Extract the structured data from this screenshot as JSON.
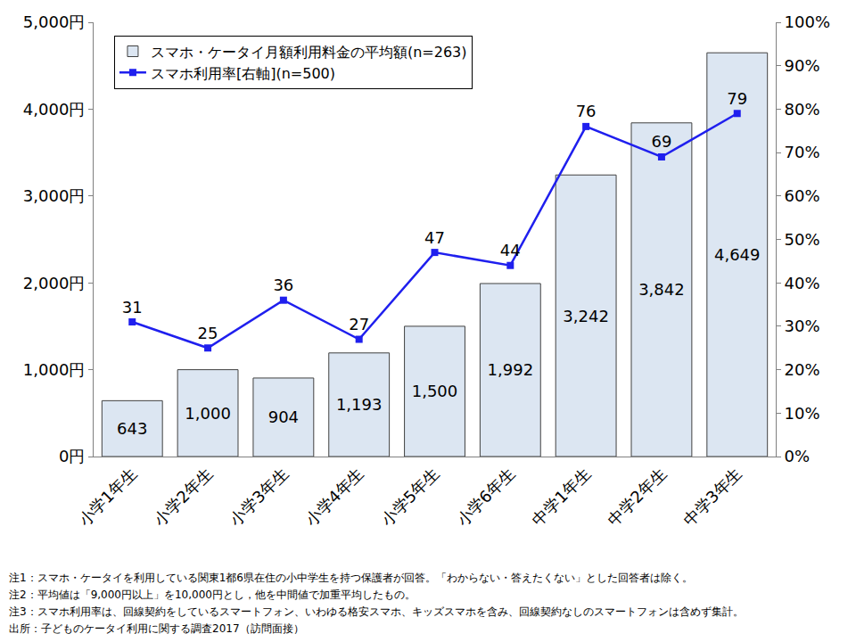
{
  "chart_data": {
    "type": "bar",
    "categories": [
      "小学1年生",
      "小学2年生",
      "小学3年生",
      "小学4年生",
      "小学5年生",
      "小学6年生",
      "中学1年生",
      "中学2年生",
      "中学3年生"
    ],
    "series": [
      {
        "name": "スマホ・ケータイ月額利用料金の平均額(n=263)",
        "type": "bar",
        "color": "#dce6f2",
        "values": [
          643,
          1000,
          904,
          1193,
          1500,
          1992,
          3242,
          3842,
          4649
        ],
        "value_labels": [
          "643",
          "1,000",
          "904",
          "1,193",
          "1,500",
          "1,992",
          "3,242",
          "3,842",
          "4,649"
        ]
      },
      {
        "name": "スマホ利用率[右軸](n=500)",
        "type": "line",
        "axis": "y2",
        "color": "#1f1fee",
        "marker": "square",
        "values": [
          31,
          25,
          36,
          27,
          47,
          44,
          76,
          69,
          79
        ]
      }
    ],
    "ylim": [
      0,
      5000
    ],
    "yticks": [
      {
        "value": 0,
        "label": "0円"
      },
      {
        "value": 1000,
        "label": "1,000円"
      },
      {
        "value": 2000,
        "label": "2,000円"
      },
      {
        "value": 3000,
        "label": "3,000円"
      },
      {
        "value": 4000,
        "label": "4,000円"
      },
      {
        "value": 5000,
        "label": "5,000円"
      }
    ],
    "y2lim": [
      0,
      100
    ],
    "y2ticks": [
      {
        "value": 0,
        "label": "0%"
      },
      {
        "value": 10,
        "label": "10%"
      },
      {
        "value": 20,
        "label": "20%"
      },
      {
        "value": 30,
        "label": "30%"
      },
      {
        "value": 40,
        "label": "40%"
      },
      {
        "value": 50,
        "label": "50%"
      },
      {
        "value": 60,
        "label": "60%"
      },
      {
        "value": 70,
        "label": "70%"
      },
      {
        "value": 80,
        "label": "80%"
      },
      {
        "value": 90,
        "label": "90%"
      },
      {
        "value": 100,
        "label": "100%"
      }
    ],
    "grid": false,
    "legend": "upper left",
    "data_labels": true,
    "annotations": [
      "注1：スマホ・ケータイを利用している関東1都6県在住の小中学生を持つ保護者が回答。「わからない・答えたくない」とした回答者は除く。",
      "注2：平均値は「9,000円以上」を10,000円とし，他を中間値で加重平均したもの。",
      "注3：スマホ利用率は、回線契約をしているスマートフォン、いわゆる格安スマホ、キッズスマホを含み、回線契約なしのスマートフォンは含めず集計。",
      "出所：子どものケータイ利用に関する調査2017（訪問面接）"
    ]
  }
}
